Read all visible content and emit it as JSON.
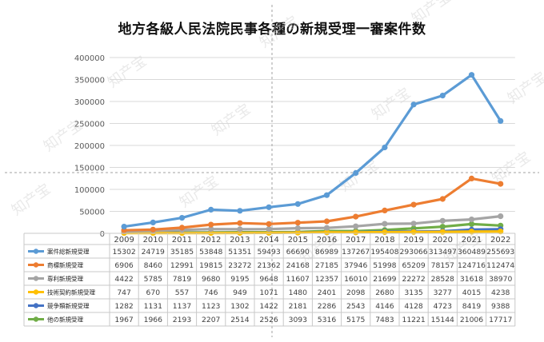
{
  "chart_data": {
    "type": "line",
    "title": "地方各級人民法院民事各種の新規受理一審案件数",
    "categories": [
      "2009",
      "2010",
      "2011",
      "2012",
      "2013",
      "2014",
      "2015",
      "2016",
      "2017",
      "2018",
      "2019",
      "2020",
      "2021",
      "2022"
    ],
    "ylim": [
      0,
      400000
    ],
    "yticks": [
      "0",
      "50000",
      "100000",
      "150000",
      "200000",
      "250000",
      "300000",
      "350000",
      "400000"
    ],
    "grid": true,
    "legend": "data table below chart",
    "series": [
      {
        "name": "案件総新規受理",
        "color": "#5b9bd5",
        "values": [
          15302,
          24719,
          35185,
          53848,
          51351,
          59493,
          66690,
          86989,
          137267,
          195408,
          293066,
          313497,
          360489,
          255693
        ]
      },
      {
        "name": "商標新規受理",
        "color": "#ed7d31",
        "values": [
          6906,
          8460,
          12991,
          19815,
          23272,
          21362,
          24168,
          27185,
          37946,
          51998,
          65209,
          78157,
          124716,
          112474
        ]
      },
      {
        "name": "専利新規受理",
        "color": "#a5a5a5",
        "values": [
          4422,
          5785,
          7819,
          9680,
          9195,
          9648,
          11607,
          12357,
          16010,
          21699,
          22272,
          28528,
          31618,
          38970
        ]
      },
      {
        "name": "技術契約新規受理",
        "color": "#ffc000",
        "values": [
          747,
          670,
          557,
          746,
          949,
          1071,
          1480,
          2401,
          2098,
          2680,
          3135,
          3277,
          4015,
          4238
        ]
      },
      {
        "name": "競争類新規受理",
        "color": "#4472c4",
        "values": [
          1282,
          1131,
          1137,
          1123,
          1302,
          1422,
          2181,
          2286,
          2543,
          4146,
          4128,
          4723,
          8419,
          9388
        ]
      },
      {
        "name": "他の新規受理",
        "color": "#70ad47",
        "values": [
          1967,
          1966,
          2193,
          2207,
          2514,
          2526,
          3093,
          5316,
          5175,
          7483,
          11221,
          15144,
          21006,
          17717
        ]
      }
    ]
  },
  "watermark": "知产宝"
}
